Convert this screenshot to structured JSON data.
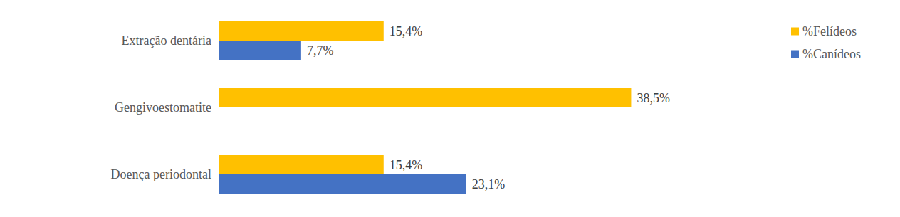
{
  "chart_data": {
    "type": "bar",
    "orientation": "horizontal",
    "categories": [
      "Extração dentária",
      "Gengivoestomatite",
      "Doença periodontal"
    ],
    "series": [
      {
        "name": "%Felídeos",
        "color": "#ffc000",
        "values": [
          15.4,
          38.5,
          15.4
        ],
        "value_labels": [
          "15,4%",
          "38,5%",
          "15,4%"
        ]
      },
      {
        "name": "%Canídeos",
        "color": "#4472c4",
        "values": [
          7.7,
          null,
          23.1
        ],
        "value_labels": [
          "7,7%",
          null,
          "23,1%"
        ]
      }
    ],
    "xlim": [
      0,
      40
    ],
    "xticks": [
      0,
      40
    ],
    "grid": false,
    "legend": "upper right",
    "data_labels": true,
    "tick_labels": "y"
  }
}
